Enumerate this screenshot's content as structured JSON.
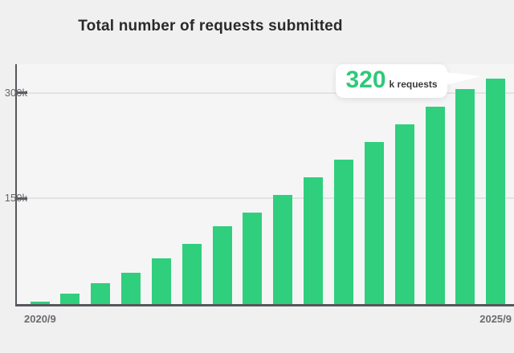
{
  "chart_data": {
    "type": "bar",
    "title": "Total number of requests submitted",
    "unit": "k requests",
    "bar_count": 16,
    "values_k": [
      4,
      15,
      30,
      45,
      65,
      85,
      110,
      130,
      155,
      180,
      205,
      230,
      255,
      280,
      305,
      320
    ],
    "x_first_label": "2020/9",
    "x_last_label": "2025/9",
    "y_ticks": [
      {
        "label": "150k",
        "value_k": 150
      },
      {
        "label": "300k",
        "value_k": 300
      }
    ],
    "ylim_k": [
      0,
      340
    ],
    "grid": "horizontal-only",
    "legend": "none",
    "highlighted_bar_index": 15
  },
  "tooltip": {
    "value": "320",
    "unit": "k requests",
    "points_to": "last-bar"
  },
  "colors": {
    "bar_green": "#30cf7d",
    "tooltip_value_green": "#2ec97a",
    "axis_dark": "#56575b",
    "gridline_gray": "#e3e3e5",
    "title_text": "#2a2a2a",
    "axis_label_gray": "#6b6b6d",
    "page_background": "#f0f0f1",
    "plot_background": "#f5f5f6",
    "tooltip_background": "#ffffff"
  }
}
